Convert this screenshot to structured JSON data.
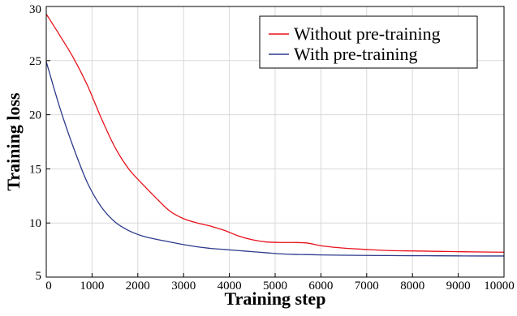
{
  "chart_data": {
    "type": "line",
    "title": "",
    "xlabel": "Training step",
    "ylabel": "Training loss",
    "xlim": [
      0,
      10000
    ],
    "ylim": [
      5,
      30
    ],
    "xticks": [
      0,
      1000,
      2000,
      3000,
      4000,
      5000,
      6000,
      7000,
      8000,
      9000,
      10000
    ],
    "yticks": [
      5,
      10,
      15,
      20,
      25,
      30
    ],
    "grid": true,
    "legend_position": "top-right",
    "series": [
      {
        "name": "Without pre-training",
        "color": "#e8101a",
        "x": [
          0,
          300,
          600,
          900,
          1200,
          1500,
          1800,
          2100,
          2400,
          2700,
          3000,
          3300,
          3600,
          3900,
          4200,
          4500,
          4800,
          5100,
          5400,
          5700,
          6000,
          6300,
          6600,
          7000,
          7500,
          8000,
          8500,
          9000,
          9500,
          10000
        ],
        "y": [
          29.3,
          27.3,
          25.2,
          22.7,
          19.7,
          17.0,
          15.0,
          13.6,
          12.3,
          11.1,
          10.4,
          10.0,
          9.7,
          9.3,
          8.8,
          8.45,
          8.25,
          8.2,
          8.2,
          8.15,
          7.9,
          7.75,
          7.65,
          7.55,
          7.45,
          7.42,
          7.38,
          7.35,
          7.32,
          7.3
        ]
      },
      {
        "name": "With pre-training",
        "color": "#2d3a8c",
        "x": [
          0,
          300,
          600,
          900,
          1200,
          1500,
          1800,
          2100,
          2400,
          2700,
          3000,
          3300,
          3600,
          3900,
          4200,
          4500,
          4800,
          5100,
          5400,
          5700,
          6000,
          6500,
          7000,
          7500,
          8000,
          8500,
          9000,
          9500,
          10000
        ],
        "y": [
          24.9,
          20.6,
          16.9,
          13.7,
          11.5,
          10.1,
          9.3,
          8.8,
          8.5,
          8.25,
          8.0,
          7.8,
          7.65,
          7.55,
          7.45,
          7.35,
          7.25,
          7.15,
          7.1,
          7.08,
          7.05,
          7.02,
          7.0,
          6.99,
          6.98,
          6.97,
          6.96,
          6.95,
          6.95
        ]
      }
    ]
  }
}
